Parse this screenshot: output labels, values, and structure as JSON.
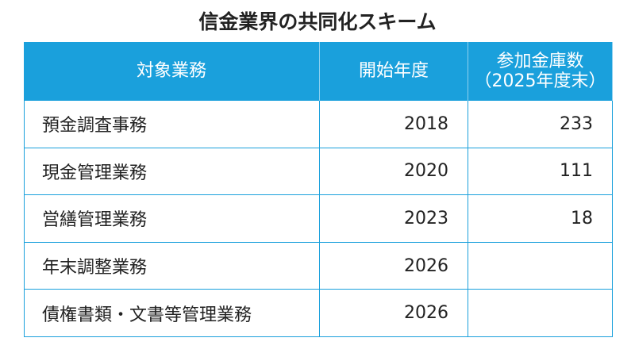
{
  "title": "信金業界の共同化スキーム",
  "table": {
    "header": [
      [
        "対象業務"
      ],
      [
        "開始年度"
      ],
      [
        "参加金庫数",
        "（2025年度末）"
      ]
    ],
    "rows": [
      [
        "預金調査事務",
        "2018",
        "233"
      ],
      [
        "現金管理業務",
        "2020",
        "111"
      ],
      [
        "営繕管理業務",
        "2023",
        "18"
      ],
      [
        "年末調整業務",
        "2026"
      ],
      [
        "債権書類・文書等管理業務",
        "2026"
      ]
    ]
  }
}
